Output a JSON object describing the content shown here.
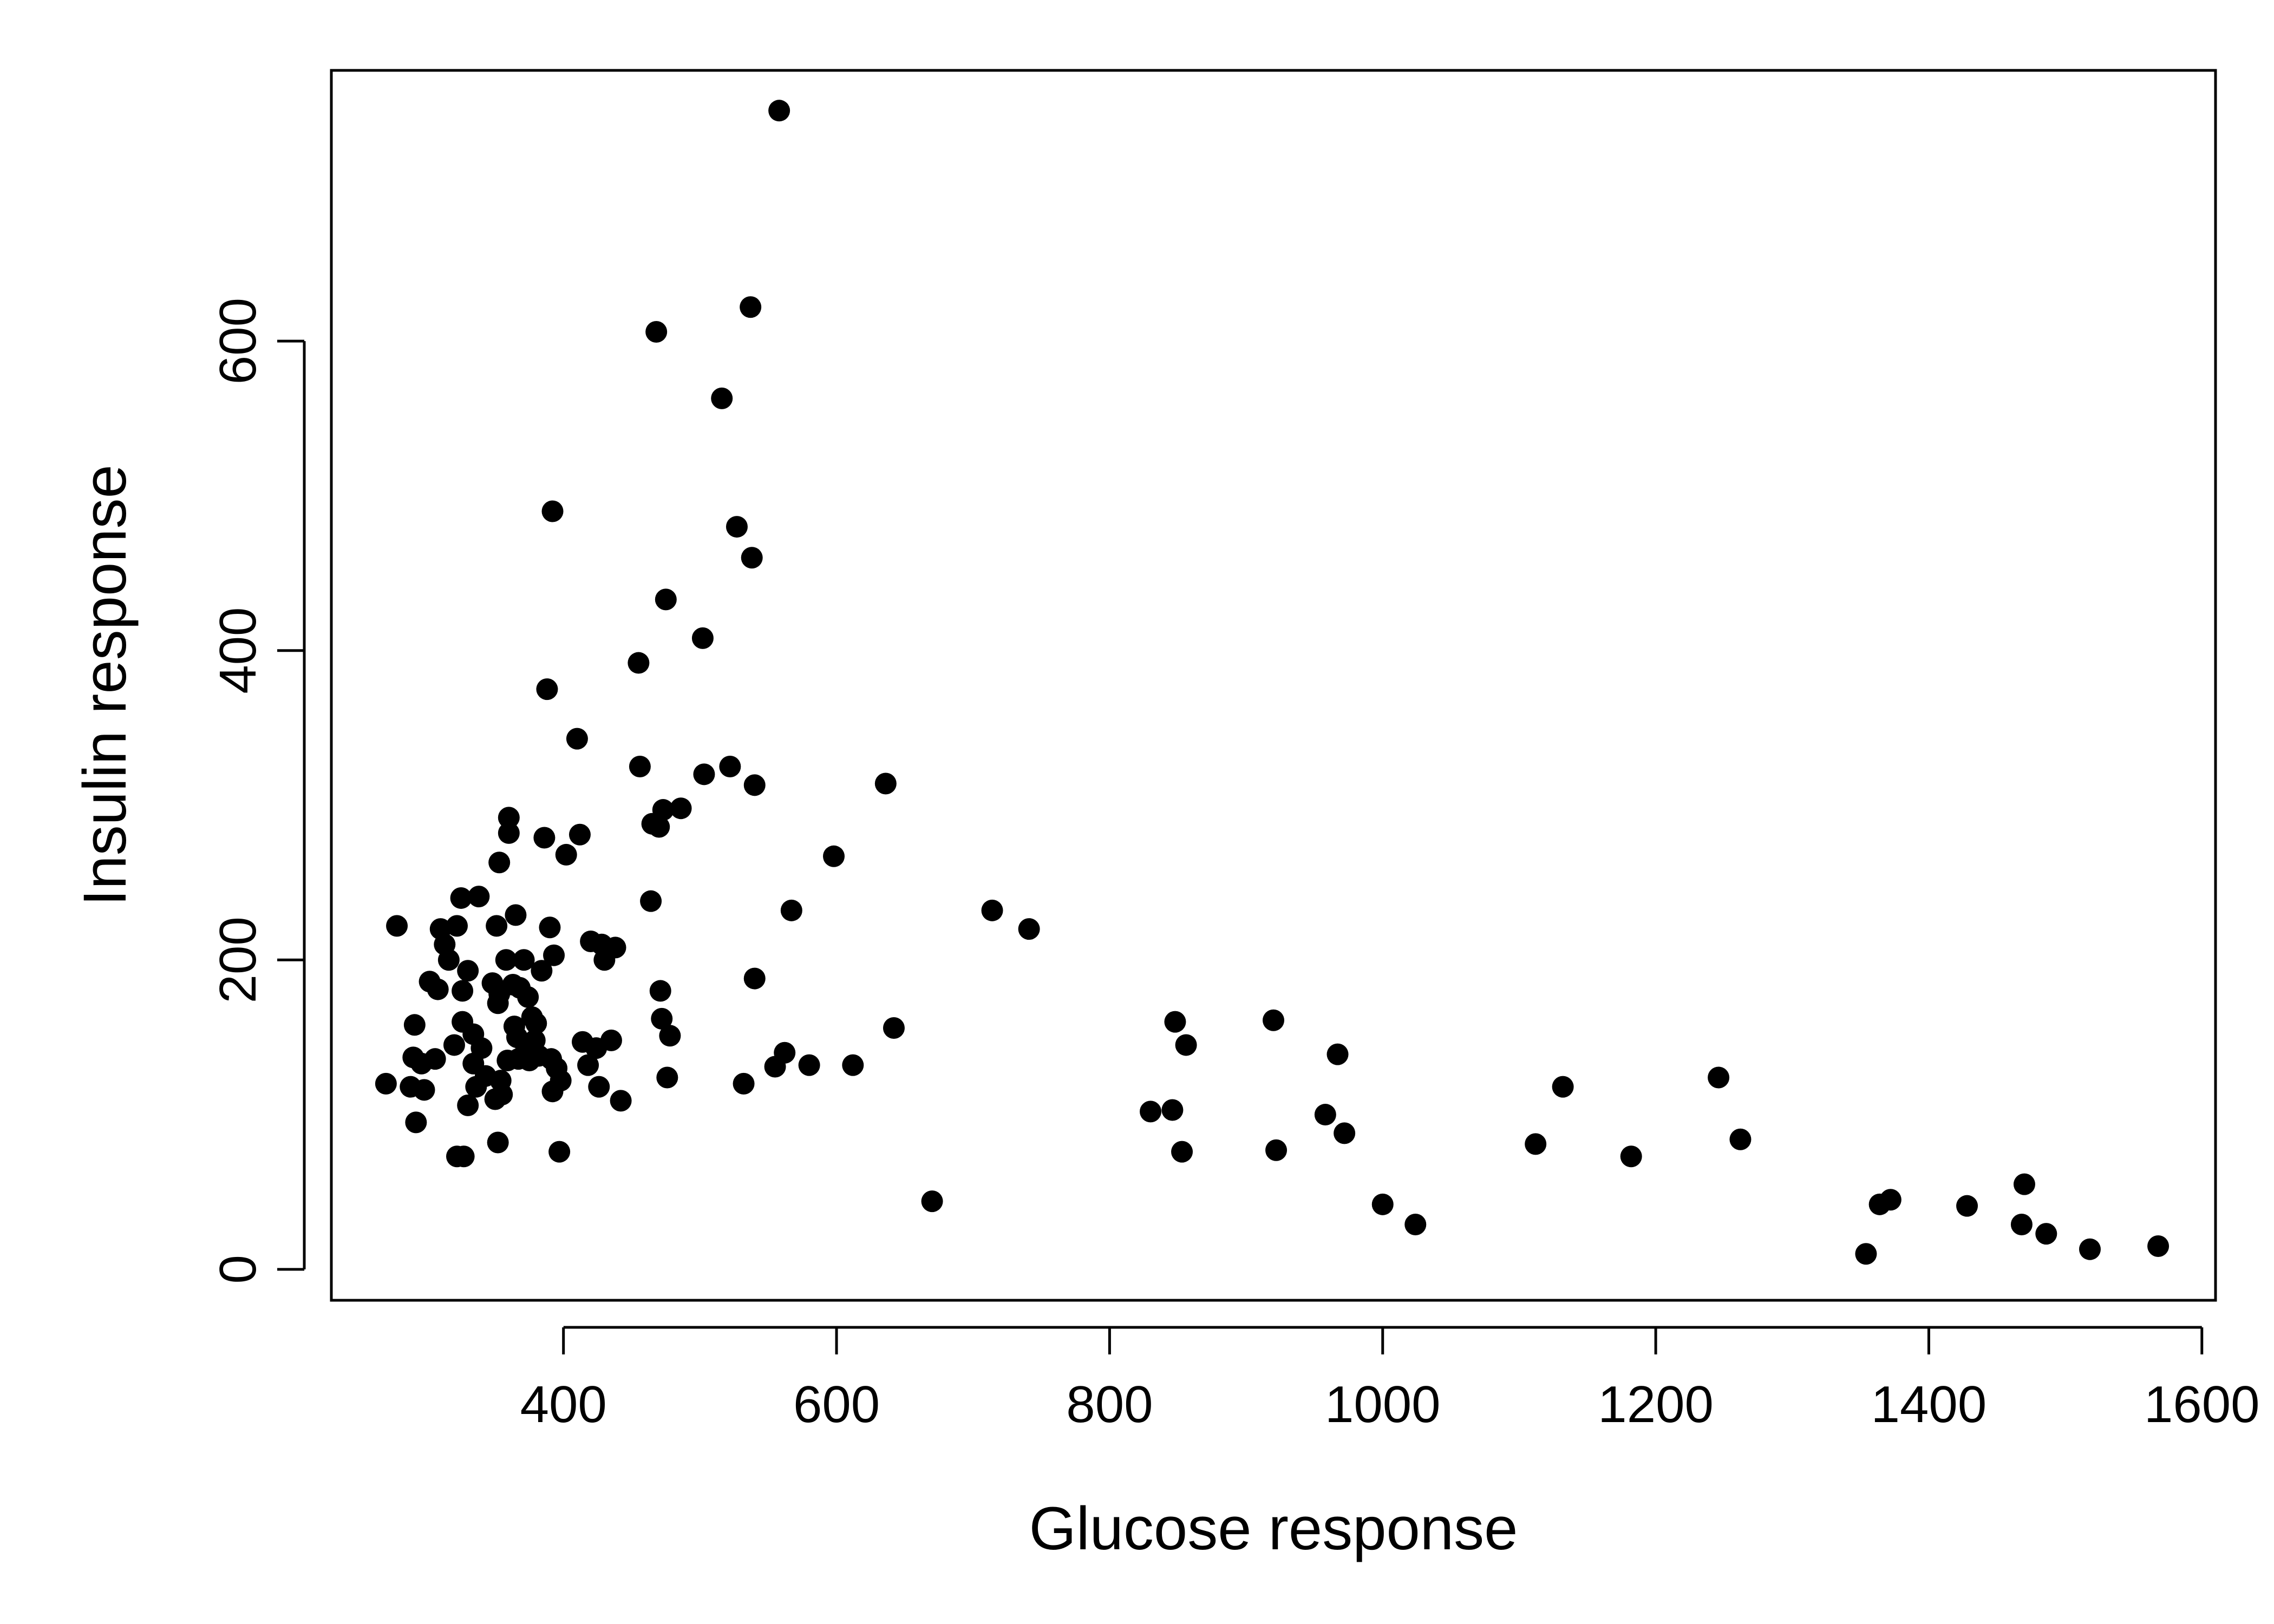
{
  "colors": {
    "background": "#ffffff",
    "ink": "#000000"
  },
  "chart_data": {
    "type": "scatter",
    "title": "",
    "xlabel": "Glucose response",
    "ylabel": "Insulin response",
    "xlim": [
      230,
      1610
    ],
    "ylim": [
      -20,
      775
    ],
    "xticks": [
      400,
      600,
      800,
      1000,
      1200,
      1400,
      1600
    ],
    "yticks": [
      0,
      200,
      400,
      600
    ],
    "grid": false,
    "legend": "none",
    "points": [
      [
        270,
        120
      ],
      [
        278,
        222
      ],
      [
        288,
        118
      ],
      [
        290,
        137
      ],
      [
        291,
        158
      ],
      [
        292,
        95
      ],
      [
        296,
        133
      ],
      [
        298,
        116
      ],
      [
        302,
        186
      ],
      [
        306,
        136
      ],
      [
        308,
        181
      ],
      [
        310,
        220
      ],
      [
        313,
        210
      ],
      [
        316,
        200
      ],
      [
        320,
        145
      ],
      [
        322,
        222
      ],
      [
        322,
        73
      ],
      [
        325,
        240
      ],
      [
        326,
        160
      ],
      [
        326,
        180
      ],
      [
        327,
        73
      ],
      [
        330,
        106
      ],
      [
        330,
        193
      ],
      [
        334,
        152
      ],
      [
        334,
        133
      ],
      [
        336,
        118
      ],
      [
        338,
        241
      ],
      [
        340,
        143
      ],
      [
        343,
        125
      ],
      [
        348,
        185
      ],
      [
        350,
        110
      ],
      [
        351,
        222
      ],
      [
        352,
        172
      ],
      [
        352,
        82
      ],
      [
        353,
        263
      ],
      [
        353,
        178
      ],
      [
        354,
        122
      ],
      [
        355,
        113
      ],
      [
        358,
        200
      ],
      [
        359,
        135
      ],
      [
        360,
        282
      ],
      [
        360,
        292
      ],
      [
        363,
        184
      ],
      [
        364,
        157
      ],
      [
        365,
        229
      ],
      [
        366,
        150
      ],
      [
        367,
        136
      ],
      [
        368,
        182
      ],
      [
        371,
        200
      ],
      [
        372,
        140
      ],
      [
        374,
        176
      ],
      [
        375,
        135
      ],
      [
        377,
        163
      ],
      [
        379,
        148
      ],
      [
        380,
        159
      ],
      [
        382,
        138
      ],
      [
        384,
        193
      ],
      [
        386,
        279
      ],
      [
        388,
        375
      ],
      [
        390,
        221
      ],
      [
        391,
        136
      ],
      [
        392,
        490
      ],
      [
        392,
        115
      ],
      [
        393,
        203
      ],
      [
        395,
        130
      ],
      [
        397,
        76
      ],
      [
        398,
        122
      ],
      [
        402,
        268
      ],
      [
        410,
        343
      ],
      [
        412,
        281
      ],
      [
        414,
        147
      ],
      [
        418,
        132
      ],
      [
        420,
        212
      ],
      [
        424,
        143
      ],
      [
        426,
        118
      ],
      [
        428,
        210
      ],
      [
        430,
        200
      ],
      [
        435,
        148
      ],
      [
        438,
        208
      ],
      [
        442,
        109
      ],
      [
        455,
        392
      ],
      [
        456,
        325
      ],
      [
        464,
        238
      ],
      [
        465,
        288
      ],
      [
        468,
        606
      ],
      [
        470,
        286
      ],
      [
        471,
        180
      ],
      [
        472,
        162
      ],
      [
        473,
        297
      ],
      [
        475,
        433
      ],
      [
        476,
        124
      ],
      [
        478,
        151
      ],
      [
        486,
        298
      ],
      [
        502,
        408
      ],
      [
        503,
        320
      ],
      [
        516,
        563
      ],
      [
        522,
        325
      ],
      [
        527,
        480
      ],
      [
        532,
        120
      ],
      [
        537,
        622
      ],
      [
        538,
        460
      ],
      [
        540,
        313
      ],
      [
        540,
        188
      ],
      [
        555,
        131
      ],
      [
        558,
        749
      ],
      [
        562,
        140
      ],
      [
        567,
        232
      ],
      [
        580,
        132
      ],
      [
        598,
        267
      ],
      [
        612,
        132
      ],
      [
        636,
        314
      ],
      [
        642,
        156
      ],
      [
        670,
        44
      ],
      [
        714,
        232
      ],
      [
        741,
        220
      ],
      [
        830,
        102
      ],
      [
        846,
        103
      ],
      [
        848,
        160
      ],
      [
        853,
        76
      ],
      [
        856,
        145
      ],
      [
        920,
        161
      ],
      [
        922,
        77
      ],
      [
        958,
        100
      ],
      [
        967,
        139
      ],
      [
        972,
        88
      ],
      [
        1000,
        42
      ],
      [
        1024,
        29
      ],
      [
        1112,
        81
      ],
      [
        1132,
        118
      ],
      [
        1182,
        73
      ],
      [
        1246,
        124
      ],
      [
        1262,
        84
      ],
      [
        1354,
        10
      ],
      [
        1364,
        42
      ],
      [
        1372,
        45
      ],
      [
        1428,
        41
      ],
      [
        1468,
        29
      ],
      [
        1470,
        55
      ],
      [
        1486,
        23
      ],
      [
        1518,
        13
      ],
      [
        1568,
        15
      ]
    ]
  }
}
